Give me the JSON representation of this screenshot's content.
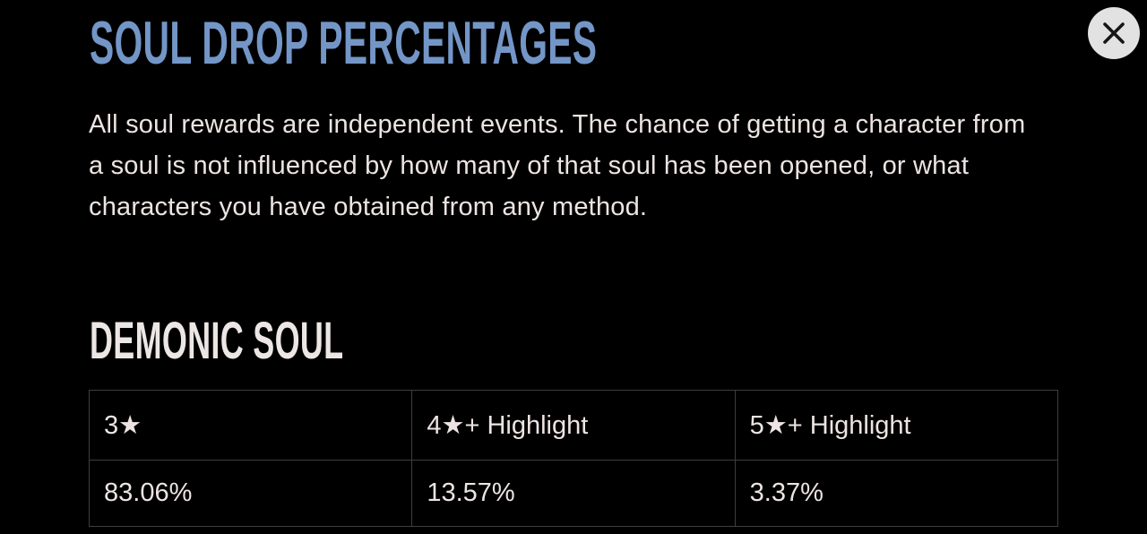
{
  "modal": {
    "title": "SOUL DROP PERCENTAGES",
    "description": "All soul rewards are independent events. The chance of getting a character from a soul is not influenced by how many of that soul has been opened, or what characters you have obtained from any method.",
    "close_icon": "x-icon"
  },
  "section": {
    "heading": "DEMONIC SOUL",
    "table": {
      "headers": [
        "3★",
        "4★+ Highlight",
        "5★+ Highlight"
      ],
      "values": [
        "83.06%",
        "13.57%",
        "3.37%"
      ]
    }
  },
  "chart_data": {
    "type": "table",
    "title": "DEMONIC SOUL",
    "categories": [
      "3★",
      "4★+ Highlight",
      "5★+ Highlight"
    ],
    "values": [
      83.06,
      13.57,
      3.37
    ],
    "unit": "%"
  },
  "colors": {
    "background": "#000000",
    "title": "#7396c7",
    "text": "#ece4e2",
    "heading": "#ece7e4",
    "table_border": "#3e3e3e",
    "close_button_bg": "#e2e2e2",
    "close_button_icon": "#161616"
  }
}
